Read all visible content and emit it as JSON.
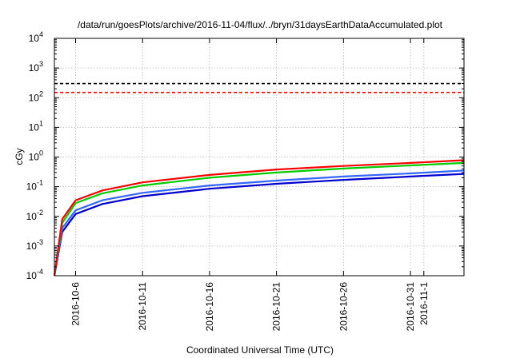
{
  "chart_data": {
    "type": "line",
    "title": "/data/run/goesPlots/archive/2016-11-04/flux/../bryn/31daysEarthDataAccumulated.plot",
    "xlabel": "Coordinated Universal Time (UTC)",
    "ylabel": "cGy",
    "x_scale": "time",
    "y_scale": "log",
    "xlim": [
      "2016-10-04T10:00",
      "2016-11-04T00:00"
    ],
    "ylim": [
      0.0001,
      10000
    ],
    "grid": true,
    "x_ticks": [
      "2016-10-6",
      "2016-10-11",
      "2016-10-16",
      "2016-10-21",
      "2016-10-26",
      "2016-10-31",
      "2016-11-1"
    ],
    "y_ticks": [
      {
        "value": 0.0001,
        "base": "10",
        "exp": "-4"
      },
      {
        "value": 0.001,
        "base": "10",
        "exp": "-3"
      },
      {
        "value": 0.01,
        "base": "10",
        "exp": "-2"
      },
      {
        "value": 0.1,
        "base": "10",
        "exp": "-1"
      },
      {
        "value": 1,
        "base": "10",
        "exp": "0"
      },
      {
        "value": 10,
        "base": "10",
        "exp": "1"
      },
      {
        "value": 100,
        "base": "10",
        "exp": "2"
      },
      {
        "value": 1000,
        "base": "10",
        "exp": "3"
      },
      {
        "value": 10000,
        "base": "10",
        "exp": "4"
      }
    ],
    "reference_lines": [
      {
        "value": 300,
        "color": "#000000",
        "dash": true
      },
      {
        "value": 150,
        "color": "#ff0000",
        "dash": true
      }
    ],
    "series": [
      {
        "color": "#ff0000",
        "x": [
          "2016-10-04T10:00",
          "2016-10-05",
          "2016-10-06",
          "2016-10-08",
          "2016-10-11",
          "2016-10-16",
          "2016-10-21",
          "2016-10-26",
          "2016-10-31",
          "2016-11-04"
        ],
        "values": [
          0.0001,
          0.008,
          0.035,
          0.075,
          0.14,
          0.25,
          0.38,
          0.5,
          0.63,
          0.78
        ]
      },
      {
        "color": "#00cc00",
        "x": [
          "2016-10-04T10:00",
          "2016-10-05",
          "2016-10-06",
          "2016-10-08",
          "2016-10-11",
          "2016-10-16",
          "2016-10-21",
          "2016-10-26",
          "2016-10-31",
          "2016-11-04"
        ],
        "values": [
          0.0001,
          0.006,
          0.028,
          0.06,
          0.11,
          0.2,
          0.3,
          0.41,
          0.52,
          0.63
        ]
      },
      {
        "color": "#3366ff",
        "x": [
          "2016-10-04T10:00",
          "2016-10-05",
          "2016-10-06",
          "2016-10-08",
          "2016-10-11",
          "2016-10-16",
          "2016-10-21",
          "2016-10-26",
          "2016-10-31",
          "2016-11-04"
        ],
        "values": [
          0.0001,
          0.004,
          0.016,
          0.035,
          0.062,
          0.11,
          0.16,
          0.22,
          0.28,
          0.35
        ]
      },
      {
        "color": "#0000cc",
        "x": [
          "2016-10-04T10:00",
          "2016-10-05",
          "2016-10-06",
          "2016-10-08",
          "2016-10-11",
          "2016-10-16",
          "2016-10-21",
          "2016-10-26",
          "2016-10-31",
          "2016-11-04"
        ],
        "values": [
          0.0001,
          0.003,
          0.012,
          0.026,
          0.048,
          0.085,
          0.125,
          0.17,
          0.22,
          0.27
        ]
      }
    ]
  }
}
